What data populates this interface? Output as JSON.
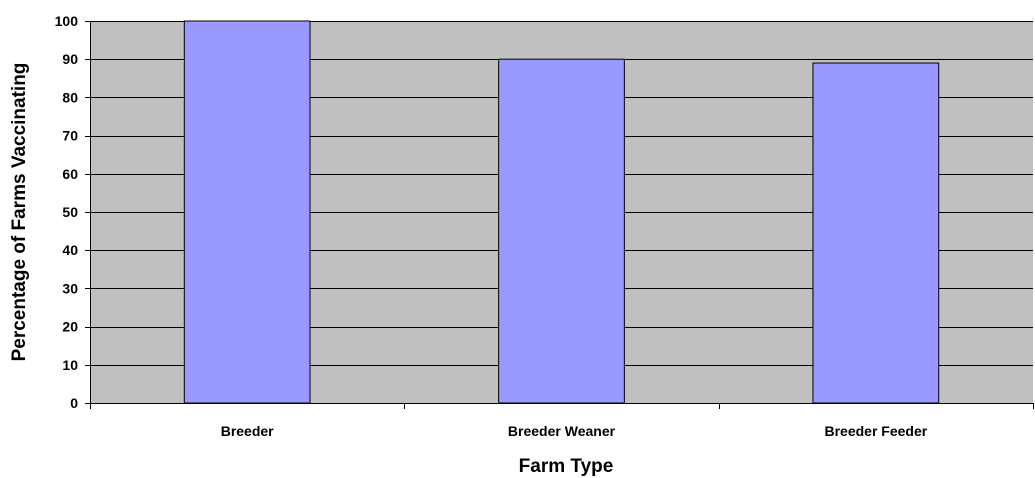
{
  "chart_data": {
    "type": "bar",
    "title": "",
    "xlabel": "Farm Type",
    "ylabel": "Percentage of Farms Vaccinating",
    "categories": [
      "Breeder",
      "Breeder Weaner",
      "Breeder Feeder"
    ],
    "values": [
      100,
      90,
      89
    ],
    "ylim": [
      0,
      100
    ],
    "yticks": [
      0,
      10,
      20,
      30,
      40,
      50,
      60,
      70,
      80,
      90,
      100
    ],
    "grid": true,
    "legend": "none",
    "colors": {
      "bar_fill": "#9999FF",
      "plot_background": "#C0C0C0",
      "gridline": "#000000"
    }
  }
}
